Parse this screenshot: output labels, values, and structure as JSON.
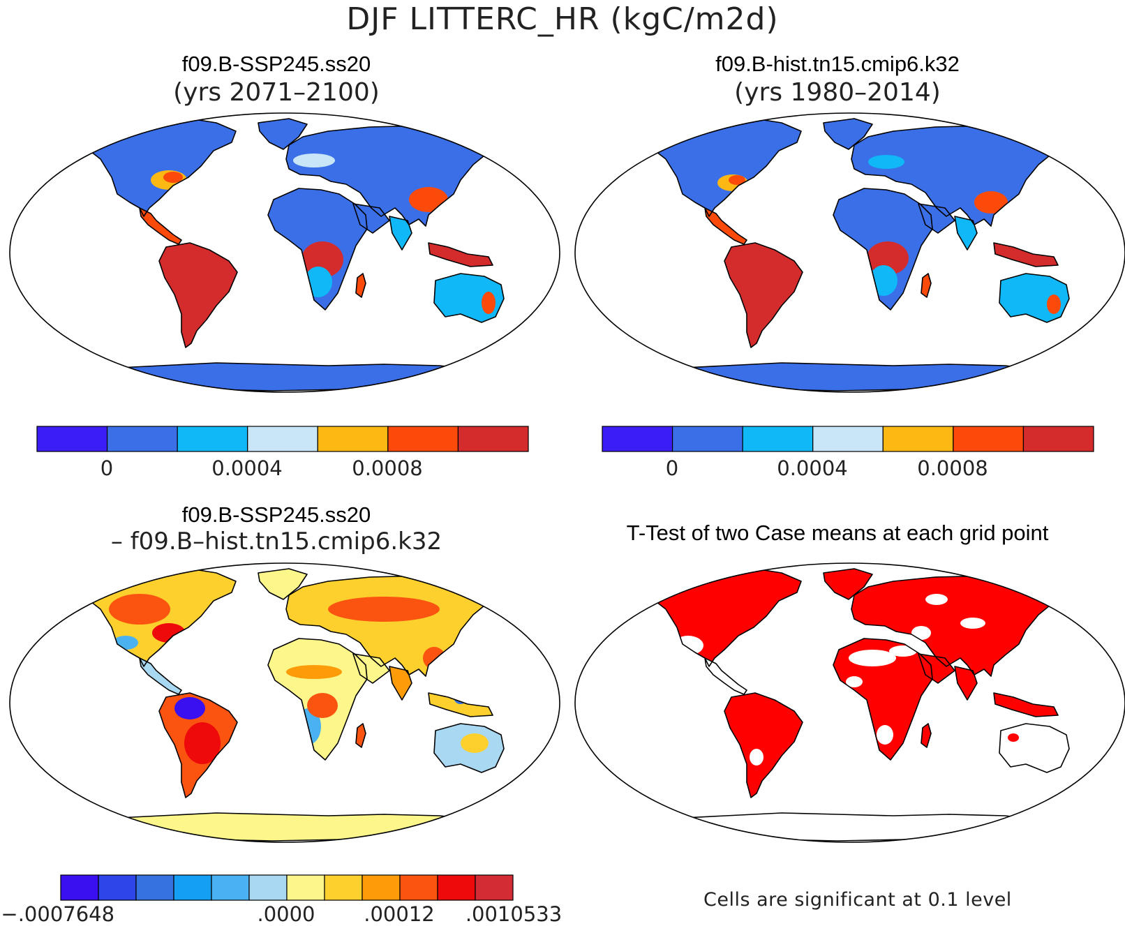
{
  "title": "DJF LITTERC_HR (kgC/m2d)",
  "panels": [
    {
      "title": "f09.B-SSP245.ss20",
      "subtitle": "(yrs 2071–2100)"
    },
    {
      "title": "f09.B-hist.tn15.cmip6.k32",
      "subtitle": "(yrs 1980–2014)"
    },
    {
      "title": "f09.B-SSP245.ss20",
      "subtitle": "– f09.B–hist.tn15.cmip6.k32"
    },
    {
      "title": "T-Test of two Case means at each grid point",
      "subtitle": ""
    }
  ],
  "colorbars": {
    "absolute": {
      "colors": [
        "#3a1ef5",
        "#3a6fe8",
        "#10b8f8",
        "#c8e6f8",
        "#fdb814",
        "#fb4a0a",
        "#d42c2c"
      ],
      "labels": [
        "0",
        "0.0004",
        "0.0008"
      ]
    },
    "difference": {
      "colors": [
        "#3a10f0",
        "#2e46e8",
        "#3672e0",
        "#149ef4",
        "#4ab2f0",
        "#a8d8f2",
        "#fdf68a",
        "#fdd02e",
        "#fd9c08",
        "#fb5410",
        "#ee0a0a",
        "#d42c34"
      ],
      "labels": [
        "−.0007648",
        ".0000",
        ".00012",
        ".0010533"
      ]
    }
  },
  "significance_note": "Cells are significant at 0.1 level",
  "significance_color": "#ff0000",
  "ocean_color": "#ffffff",
  "coast_color": "#000000"
}
